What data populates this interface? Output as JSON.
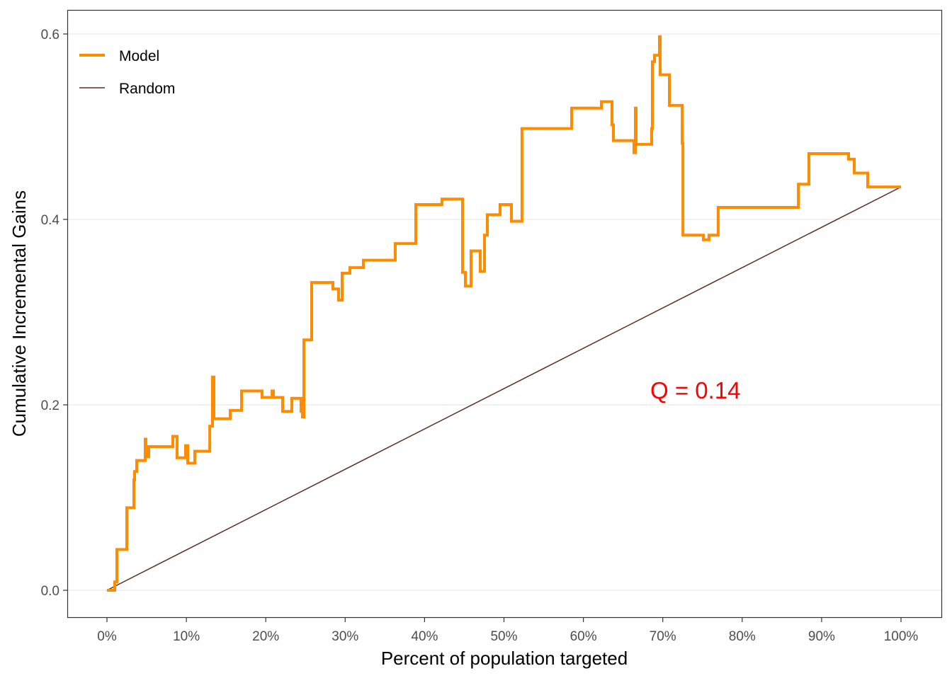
{
  "chart_data": {
    "type": "line",
    "title": "",
    "xlabel": "Percent of population targeted",
    "ylabel": "Cumulative Incremental Gains",
    "xlim": [
      0,
      100
    ],
    "ylim": [
      -0.03,
      0.63
    ],
    "x_ticks": [
      0,
      10,
      20,
      30,
      40,
      50,
      60,
      70,
      80,
      90,
      100
    ],
    "x_tick_labels": [
      "0%",
      "10%",
      "20%",
      "30%",
      "40%",
      "50%",
      "60%",
      "70%",
      "80%",
      "90%",
      "100%"
    ],
    "y_ticks": [
      0.0,
      0.2,
      0.4,
      0.6
    ],
    "y_tick_labels": [
      "0.0",
      "0.2",
      "0.4",
      "0.6"
    ],
    "grid": "horizontal major",
    "legend": {
      "placement": "top-left",
      "entries": [
        "Model",
        "Random"
      ]
    },
    "annotation": {
      "text": "Q = 0.14",
      "x": 75,
      "y": 0.215,
      "color": "#FF0000"
    },
    "series": [
      {
        "name": "Model",
        "color": "#FF8C00",
        "step": "after",
        "points": [
          [
            0,
            0
          ],
          [
            0.98,
            0.009
          ],
          [
            1.25,
            0.044
          ],
          [
            2.5,
            0.089
          ],
          [
            3.39,
            0.119
          ],
          [
            3.48,
            0.128
          ],
          [
            3.75,
            0.14
          ],
          [
            4.82,
            0.163
          ],
          [
            4.91,
            0.144
          ],
          [
            5.26,
            0.155
          ],
          [
            8.3,
            0.166
          ],
          [
            8.83,
            0.143
          ],
          [
            9.9,
            0.156
          ],
          [
            10.17,
            0.137
          ],
          [
            11.06,
            0.15
          ],
          [
            12.94,
            0.177
          ],
          [
            13.29,
            0.23
          ],
          [
            13.47,
            0.185
          ],
          [
            15.52,
            0.194
          ],
          [
            16.95,
            0.215
          ],
          [
            19.54,
            0.208
          ],
          [
            20.79,
            0.215
          ],
          [
            20.96,
            0.208
          ],
          [
            22.12,
            0.193
          ],
          [
            23.28,
            0.207
          ],
          [
            24.44,
            0.193
          ],
          [
            24.62,
            0.187
          ],
          [
            24.8,
            0.27
          ],
          [
            25.78,
            0.332
          ],
          [
            28.46,
            0.325
          ],
          [
            29.17,
            0.313
          ],
          [
            29.62,
            0.342
          ],
          [
            30.6,
            0.348
          ],
          [
            32.29,
            0.356
          ],
          [
            36.31,
            0.374
          ],
          [
            38.89,
            0.416
          ],
          [
            42.19,
            0.422
          ],
          [
            44.78,
            0.343
          ],
          [
            45.14,
            0.328
          ],
          [
            45.85,
            0.366
          ],
          [
            47.01,
            0.344
          ],
          [
            47.55,
            0.383
          ],
          [
            47.9,
            0.405
          ],
          [
            49.51,
            0.416
          ],
          [
            50.94,
            0.398
          ],
          [
            52.27,
            0.498
          ],
          [
            58.52,
            0.52
          ],
          [
            62.27,
            0.527
          ],
          [
            63.6,
            0.502
          ],
          [
            63.78,
            0.485
          ],
          [
            66.37,
            0.472
          ],
          [
            66.55,
            0.52
          ],
          [
            66.64,
            0.481
          ],
          [
            68.6,
            0.498
          ],
          [
            68.69,
            0.57
          ],
          [
            68.96,
            0.577
          ],
          [
            69.58,
            0.597
          ],
          [
            69.67,
            0.556
          ],
          [
            70.83,
            0.523
          ],
          [
            72.44,
            0.482
          ],
          [
            72.53,
            0.383
          ],
          [
            75.11,
            0.378
          ],
          [
            75.82,
            0.383
          ],
          [
            76.98,
            0.413
          ],
          [
            87.07,
            0.438
          ],
          [
            88.4,
            0.471
          ],
          [
            93.4,
            0.465
          ],
          [
            94.11,
            0.45
          ],
          [
            95.81,
            0.435
          ],
          [
            100,
            0.435
          ]
        ]
      },
      {
        "name": "Random",
        "color": "#5C2E1F",
        "points": [
          [
            0,
            0
          ],
          [
            100,
            0.435
          ]
        ]
      }
    ]
  }
}
